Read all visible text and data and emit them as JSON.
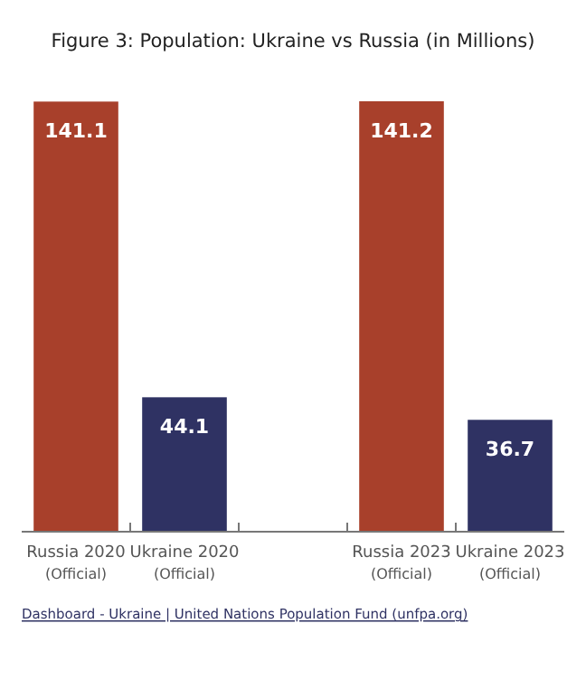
{
  "chart_data": {
    "type": "bar",
    "title": "Figure 3: Population: Ukraine vs Russia (in Millions)",
    "categories": [
      "Russia 2020 (Official)",
      "Ukraine 2020 (Official)",
      null,
      "Russia 2023 (Official)",
      "Ukraine 2023 (Official)"
    ],
    "values": [
      141.1,
      44.1,
      null,
      141.2,
      36.7
    ],
    "colors": [
      "#a8402b",
      "#2f3263",
      null,
      "#a8402b",
      "#2f3263"
    ],
    "data_labels": true,
    "annotations": [
      "Dashboard - Ukraine | United Nations Population Fund (unfpa.org)"
    ]
  }
}
